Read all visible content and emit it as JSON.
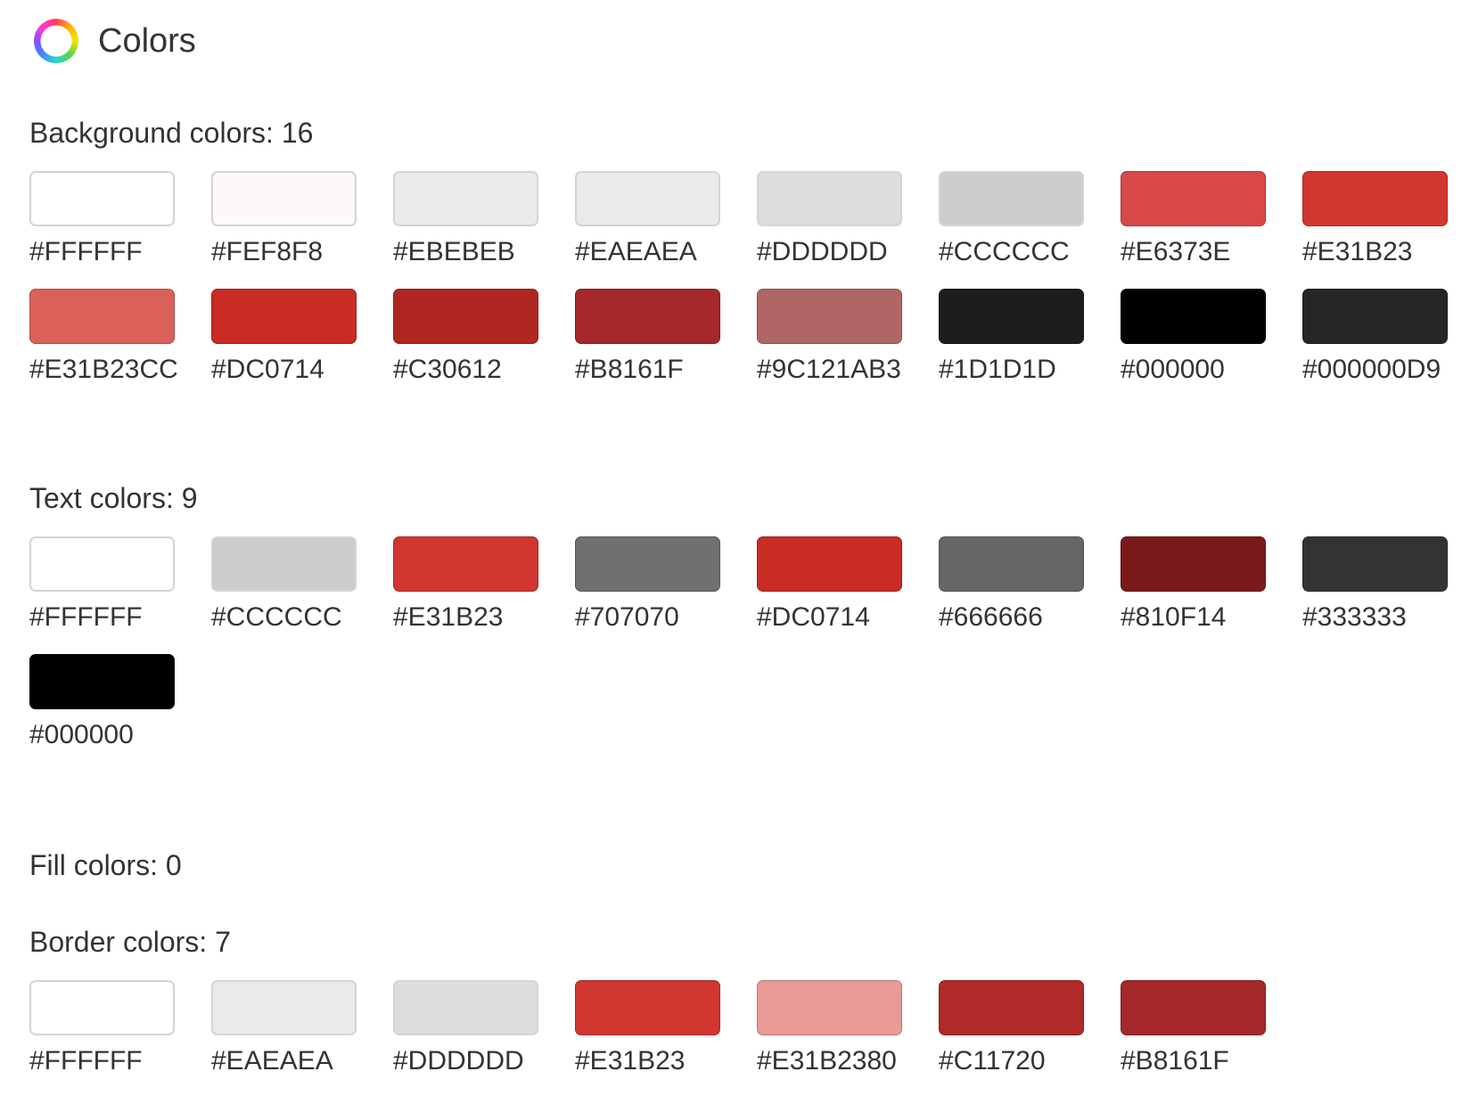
{
  "header": {
    "title": "Colors",
    "logo_icon": "color-wheel-icon"
  },
  "sections": [
    {
      "id": "background",
      "title": "Background colors: 16",
      "colors": [
        {
          "hex": "#FFFFFF",
          "swatch": "#FFFFFF"
        },
        {
          "hex": "#FEF8F8",
          "swatch": "#FEF8F8"
        },
        {
          "hex": "#EBEBEB",
          "swatch": "#EBEBEB"
        },
        {
          "hex": "#EAEAEA",
          "swatch": "#EAEAEA"
        },
        {
          "hex": "#DDDDDD",
          "swatch": "#DDDDDD"
        },
        {
          "hex": "#CCCCCC",
          "swatch": "#CCCCCC"
        },
        {
          "hex": "#E6373E",
          "swatch": "#D84848"
        },
        {
          "hex": "#E31B23",
          "swatch": "#D13631"
        },
        {
          "hex": "#E31B23CC",
          "swatch": "#DC605A"
        },
        {
          "hex": "#DC0714",
          "swatch": "#C82C24"
        },
        {
          "hex": "#C30612",
          "swatch": "#B02721"
        },
        {
          "hex": "#B8161F",
          "swatch": "#A5282A"
        },
        {
          "hex": "#9C121AB3",
          "swatch": "#B06664"
        },
        {
          "hex": "#1D1D1D",
          "swatch": "#1D1D1D"
        },
        {
          "hex": "#000000",
          "swatch": "#000000"
        },
        {
          "hex": "#000000D9",
          "swatch": "#262626"
        }
      ]
    },
    {
      "id": "text",
      "title": "Text colors: 9",
      "colors": [
        {
          "hex": "#FFFFFF",
          "swatch": "#FFFFFF"
        },
        {
          "hex": "#CCCCCC",
          "swatch": "#CCCCCC"
        },
        {
          "hex": "#E31B23",
          "swatch": "#D13631"
        },
        {
          "hex": "#707070",
          "swatch": "#707070"
        },
        {
          "hex": "#DC0714",
          "swatch": "#C82C24"
        },
        {
          "hex": "#666666",
          "swatch": "#666666"
        },
        {
          "hex": "#810F14",
          "swatch": "#7A1A1B"
        },
        {
          "hex": "#333333",
          "swatch": "#333333"
        },
        {
          "hex": "#000000",
          "swatch": "#000000"
        }
      ]
    },
    {
      "id": "fill",
      "title": "Fill colors: 0",
      "colors": []
    },
    {
      "id": "border",
      "title": "Border colors: 7",
      "colors": [
        {
          "hex": "#FFFFFF",
          "swatch": "#FFFFFF"
        },
        {
          "hex": "#EAEAEA",
          "swatch": "#EAEAEA"
        },
        {
          "hex": "#DDDDDD",
          "swatch": "#DDDDDD"
        },
        {
          "hex": "#E31B23",
          "swatch": "#D13631"
        },
        {
          "hex": "#E31B2380",
          "swatch": "#E89A97"
        },
        {
          "hex": "#C11720",
          "swatch": "#B02A29"
        },
        {
          "hex": "#B8161F",
          "swatch": "#A5282A"
        }
      ]
    }
  ]
}
